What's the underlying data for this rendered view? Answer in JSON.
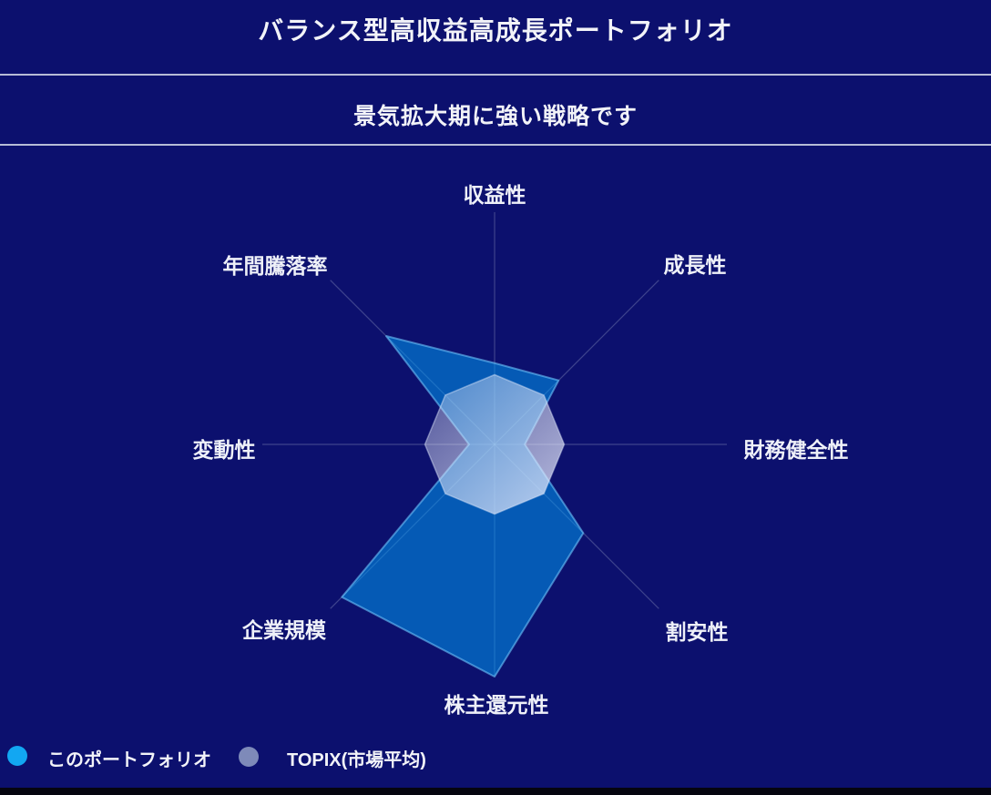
{
  "header": {
    "title": "バランス型高収益高成長ポートフォリオ",
    "subtitle": "景気拡大期に強い戦略です"
  },
  "chart_data": {
    "type": "radar",
    "categories": [
      "収益性",
      "成長性",
      "財務健全性",
      "割安性",
      "株主還元性",
      "企業規模",
      "変動性",
      "年間騰落率"
    ],
    "axis_order": "clockwise-from-top",
    "scale": {
      "min": 0,
      "max": 1
    },
    "grid": "radial-spokes-only",
    "legend_position": "bottom-left",
    "series": [
      {
        "name": "このポートフォリオ",
        "color": "#12a7f2",
        "values": [
          0.35,
          0.39,
          0.13,
          0.54,
          1.0,
          0.93,
          0.11,
          0.66
        ]
      },
      {
        "name": "TOPIX(市場平均)",
        "color": "#7e8ab9",
        "values": [
          0.3,
          0.3,
          0.3,
          0.3,
          0.3,
          0.3,
          0.3,
          0.3
        ]
      }
    ]
  },
  "colors": {
    "background": "#0c106e",
    "separator": "#b7bcd6",
    "text": "#f2f3f8",
    "portfolio_accent": "#12a7f2",
    "topix_accent": "#7e8ab9"
  }
}
